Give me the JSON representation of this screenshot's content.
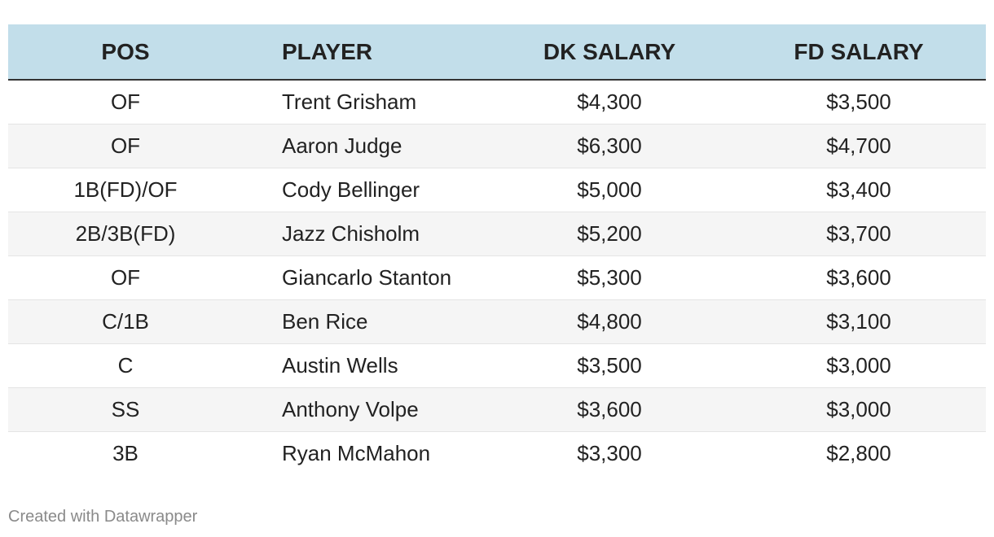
{
  "chart_data": {
    "type": "table",
    "columns": [
      "POS",
      "PLAYER",
      "DK SALARY",
      "FD SALARY"
    ],
    "rows": [
      [
        "OF",
        "Trent Grisham",
        "$4,300",
        "$3,500"
      ],
      [
        "OF",
        "Aaron Judge",
        "$6,300",
        "$4,700"
      ],
      [
        "1B(FD)/OF",
        "Cody Bellinger",
        "$5,000",
        "$3,400"
      ],
      [
        "2B/3B(FD)",
        "Jazz Chisholm",
        "$5,200",
        "$3,700"
      ],
      [
        "OF",
        "Giancarlo Stanton",
        "$5,300",
        "$3,600"
      ],
      [
        "C/1B",
        "Ben Rice",
        "$4,800",
        "$3,100"
      ],
      [
        "C",
        "Austin Wells",
        "$3,500",
        "$3,000"
      ],
      [
        "SS",
        "Anthony Volpe",
        "$3,600",
        "$3,000"
      ],
      [
        "3B",
        "Ryan McMahon",
        "$3,300",
        "$2,800"
      ]
    ],
    "header_color": "#c2deea",
    "stripe_color": "#f5f5f5"
  },
  "footer": {
    "credit": "Created with Datawrapper"
  }
}
